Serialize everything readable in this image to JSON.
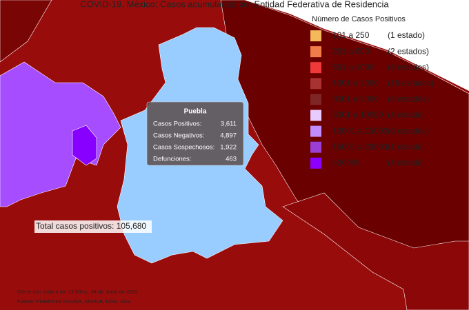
{
  "header": {
    "title": "COVID-19, México: Casos acumulados por Entidad Federativa de Residencia"
  },
  "legend": {
    "title": "Número de Casos Positivos",
    "items": [
      {
        "range": "101 a   250",
        "count": "(1 estado)",
        "color": "#f5b85a"
      },
      {
        "range": "251 a   500",
        "count": "(2 estados)",
        "color": "#f07c4a"
      },
      {
        "range": "501 a   1000",
        "count": "(3 estados)",
        "color": "#f03a3a"
      },
      {
        "range": "1001 a   3000",
        "count": "(19 estados)",
        "color": "#a83232"
      },
      {
        "range": "3001 a   5000",
        "count": "(4 estados)",
        "color": "#7e2626"
      },
      {
        "range": "5001 a 10000",
        "count": "(1 estado)",
        "color": "#e8ccff"
      },
      {
        "range": "10001 a 15000",
        "count": "(0 estados)",
        "color": "#c08cff"
      },
      {
        "range": "15001 a 20000",
        "count": "(1 estado)",
        "color": "#9a3ed6"
      },
      {
        "range": ">20000",
        "count": "(1 estado)",
        "color": "#8b00ff"
      }
    ]
  },
  "tooltip": {
    "title": "Puebla",
    "rows": [
      [
        "Casos Positivos:",
        "3,611"
      ],
      [
        "Casos Negativos:",
        "4,897"
      ],
      [
        "Casos Sospechosos:",
        "1,922"
      ],
      [
        "Defunciones:",
        "463"
      ]
    ]
  },
  "total": "Total casos positivos: 105,680",
  "footer": {
    "line1": "Cierre con corte a las 13:00hrs. 04 de Junio de 2020",
    "line2": "Fuente: Plataforma SISVER, SINAVE, DGE, SSa."
  }
}
